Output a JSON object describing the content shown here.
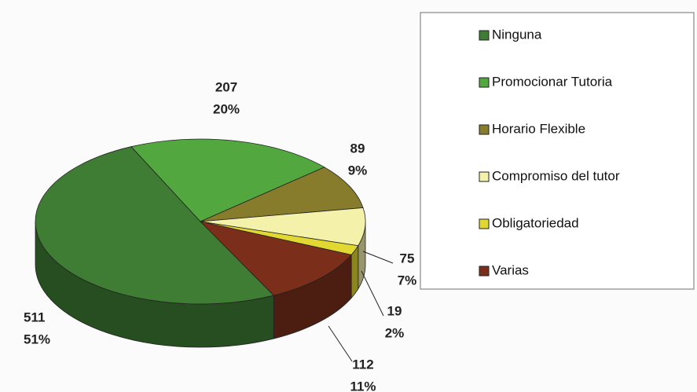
{
  "chart_data": {
    "type": "pie",
    "categories": [
      "Ninguna",
      "Promocionar Tutoria",
      "Horario Flexible",
      "Compromiso del tutor",
      "Obligatoriedad",
      "Varias"
    ],
    "values": [
      511,
      207,
      89,
      75,
      19,
      112
    ],
    "percent_labels": [
      "51%",
      "20%",
      "9%",
      "7%",
      "2%",
      "11%"
    ],
    "colors": [
      "#3f7d34",
      "#52a83f",
      "#877b2c",
      "#f4f1aa",
      "#e2d832",
      "#7b2f1b"
    ],
    "legend": "right"
  }
}
